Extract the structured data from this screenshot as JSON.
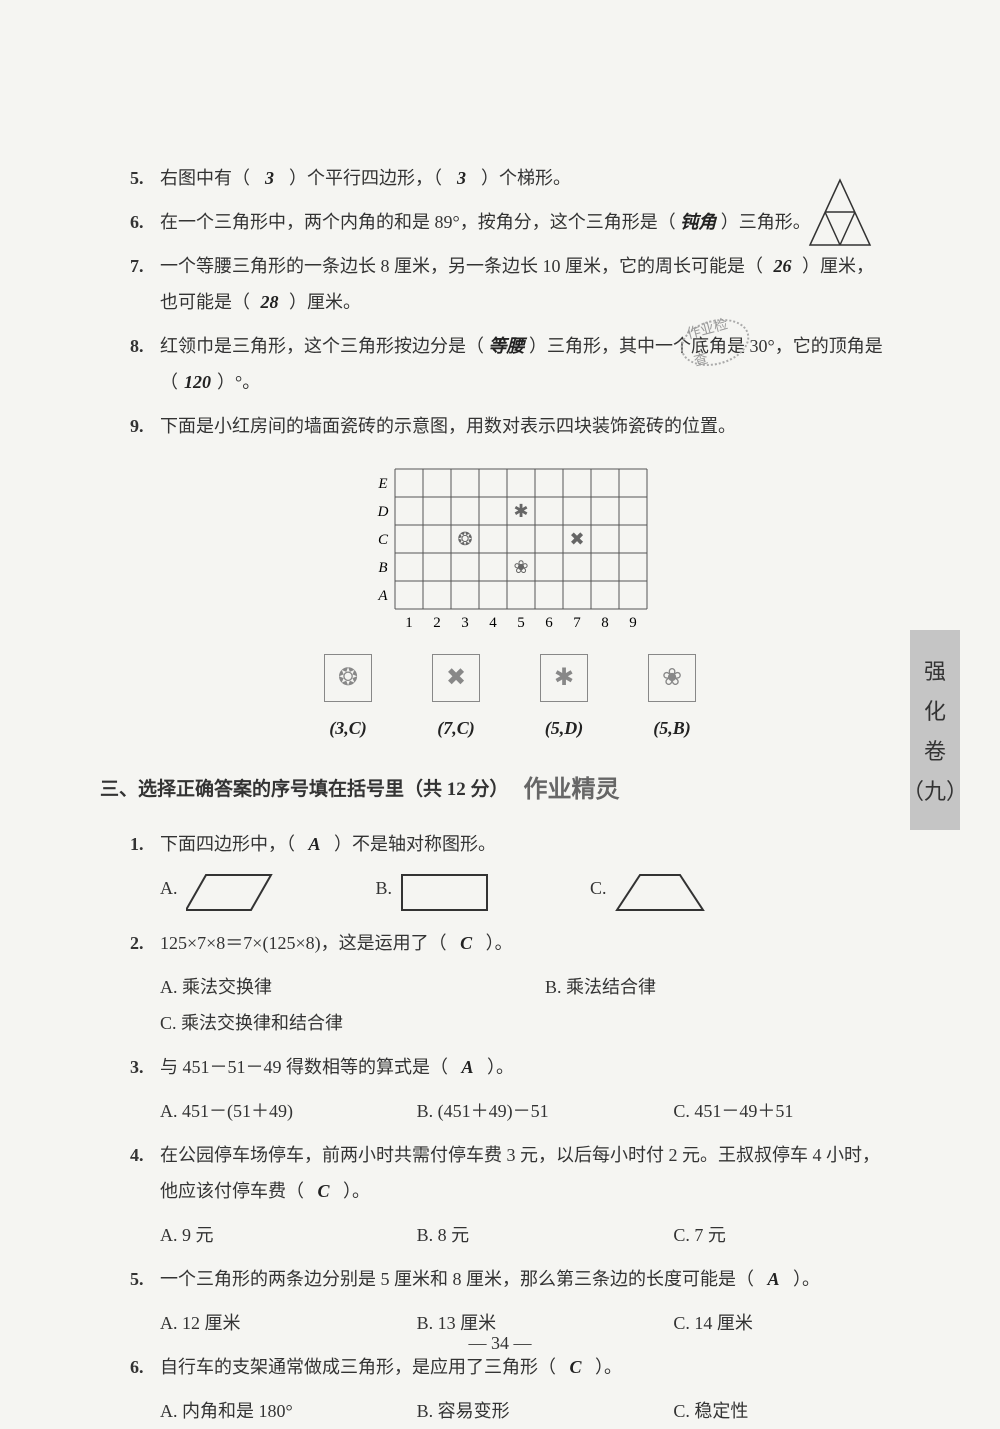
{
  "q5": {
    "num": "5.",
    "text_a": "右图中有（",
    "ans_a": "3",
    "text_b": "）个平行四边形，（",
    "ans_b": "3",
    "text_c": "）个梯形。"
  },
  "q6": {
    "num": "6.",
    "text_a": "在一个三角形中，两个内角的和是 89°，按角分，这个三角形是（",
    "ans": "钝角",
    "text_b": "）三角形。"
  },
  "q7": {
    "num": "7.",
    "text_a": "一个等腰三角形的一条边长 8 厘米，另一条边长 10 厘米，它的周长可能是（",
    "ans_a": "26",
    "text_b": "）厘米，也可能是（",
    "ans_b": "28",
    "text_c": "）厘米。"
  },
  "q8": {
    "num": "8.",
    "text_a": "红领巾是三角形，这个三角形按边分是（",
    "ans_a": "等腰",
    "text_b": "）三角形，其中一个底角是 30°，它的顶角是（",
    "ans_b": "120",
    "text_c": "）°。"
  },
  "q9": {
    "num": "9.",
    "text": "下面是小红房间的墙面瓷砖的示意图，用数对表示四块装饰瓷砖的位置。"
  },
  "grid": {
    "rows": [
      "E",
      "D",
      "C",
      "B",
      "A"
    ],
    "cols": [
      "1",
      "2",
      "3",
      "4",
      "5",
      "6",
      "7",
      "8",
      "9"
    ],
    "tiles": [
      {
        "col": 5,
        "row": 4,
        "symbol": "✱"
      },
      {
        "col": 3,
        "row": 3,
        "symbol": "❂"
      },
      {
        "col": 7,
        "row": 3,
        "symbol": "✖"
      },
      {
        "col": 5,
        "row": 2,
        "symbol": "❀"
      }
    ],
    "cell_size": 28,
    "border_color": "#555",
    "bg": "#ffffff"
  },
  "tile_answers": [
    {
      "symbol": "❂",
      "answer": "(3,C)"
    },
    {
      "symbol": "✖",
      "answer": "(7,C)"
    },
    {
      "symbol": "✱",
      "answer": "(5,D)"
    },
    {
      "symbol": "❀",
      "answer": "(5,B)"
    }
  ],
  "section3": {
    "title": "三、选择正确答案的序号填在括号里（共 12 分）",
    "watermark": "作业精灵"
  },
  "s3q1": {
    "num": "1.",
    "text_a": "下面四边形中，（",
    "ans": "A",
    "text_b": "）不是轴对称图形。",
    "optA": "A.",
    "optB": "B.",
    "optC": "C."
  },
  "s3q2": {
    "num": "2.",
    "text_a": "125×7×8＝7×(125×8)，这是运用了（",
    "ans": "C",
    "text_b": "）。",
    "optA": "A. 乘法交换律",
    "optB": "B. 乘法结合律",
    "optC": "C. 乘法交换律和结合律"
  },
  "s3q3": {
    "num": "3.",
    "text_a": "与 451－51－49 得数相等的算式是（",
    "ans": "A",
    "text_b": "）。",
    "optA": "A. 451－(51＋49)",
    "optB": "B. (451＋49)－51",
    "optC": "C. 451－49＋51"
  },
  "s3q4": {
    "num": "4.",
    "text_a": "在公园停车场停车，前两小时共需付停车费 3 元，以后每小时付 2 元。王叔叔停车 4 小时，他应该付停车费（",
    "ans": "C",
    "text_b": "）。",
    "optA": "A. 9 元",
    "optB": "B. 8 元",
    "optC": "C. 7 元"
  },
  "s3q5": {
    "num": "5.",
    "text_a": "一个三角形的两条边分别是 5 厘米和 8 厘米，那么第三条边的长度可能是（",
    "ans": "A",
    "text_b": "）。",
    "optA": "A. 12 厘米",
    "optB": "B. 13 厘米",
    "optC": "C. 14 厘米"
  },
  "s3q6": {
    "num": "6.",
    "text_a": "自行车的支架通常做成三角形，是应用了三角形（",
    "ans": "C",
    "text_b": "）。",
    "optA": "A. 内角和是 180°",
    "optB": "B. 容易变形",
    "optC": "C. 稳定性"
  },
  "side_tab": [
    "强",
    "化",
    "卷",
    "（九）"
  ],
  "page_number": "— 34 —",
  "stamp_text": "作业检查"
}
